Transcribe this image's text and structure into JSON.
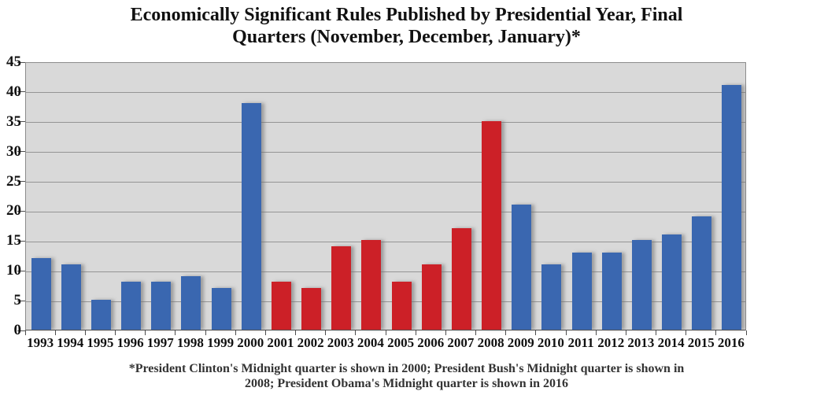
{
  "title": {
    "lines": [
      "Economically Significant Rules Published by Presidential Year, Final",
      "Quarters (November, December, January)*"
    ]
  },
  "footnote": {
    "lines": [
      "*President Clinton's Midnight quarter is shown in 2000; President Bush's Midnight quarter is shown in",
      "2008; President Obama's Midnight quarter is shown in 2016"
    ]
  },
  "chart_data": {
    "type": "bar",
    "title": "Economically Significant Rules Published by Presidential Year, Final Quarters (November, December, January)*",
    "xlabel": "",
    "ylabel": "",
    "categories": [
      "1993",
      "1994",
      "1995",
      "1996",
      "1997",
      "1998",
      "1999",
      "2000",
      "2001",
      "2002",
      "2003",
      "2004",
      "2005",
      "2006",
      "2007",
      "2008",
      "2009",
      "2010",
      "2011",
      "2012",
      "2013",
      "2014",
      "2015",
      "2016"
    ],
    "values": [
      12,
      11,
      5,
      8,
      8,
      9,
      7,
      38,
      8,
      7,
      14,
      15,
      8,
      11,
      17,
      35,
      21,
      11,
      13,
      13,
      15,
      16,
      19,
      41
    ],
    "bar_party": [
      "dem",
      "dem",
      "dem",
      "dem",
      "dem",
      "dem",
      "dem",
      "dem",
      "rep",
      "rep",
      "rep",
      "rep",
      "rep",
      "rep",
      "rep",
      "rep",
      "dem",
      "dem",
      "dem",
      "dem",
      "dem",
      "dem",
      "dem",
      "dem"
    ],
    "colors": {
      "dem": "#3A67B0",
      "rep": "#CC2027"
    },
    "plot_bg": "#D9D9D9",
    "gridline_color": "#949494",
    "ylim": [
      0,
      45
    ],
    "yticks": [
      0,
      5,
      10,
      15,
      20,
      25,
      30,
      35,
      40,
      45
    ],
    "grid": true,
    "legend": false
  }
}
